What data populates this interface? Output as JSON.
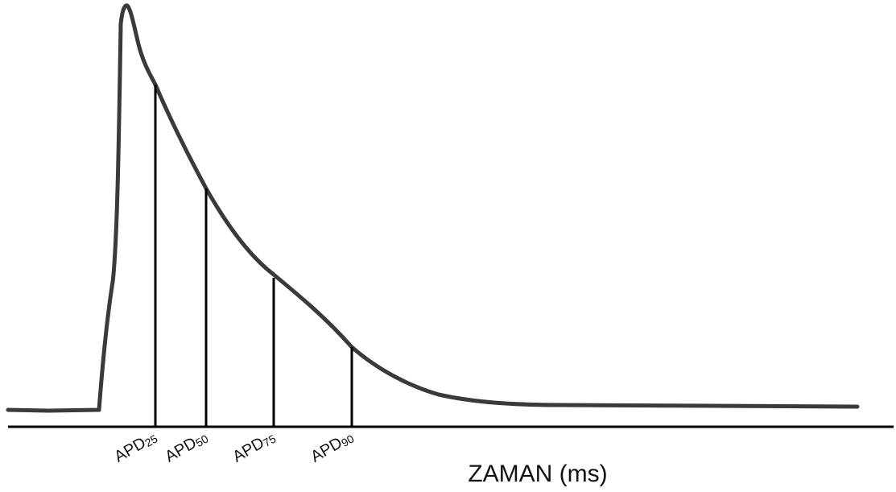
{
  "chart_data": {
    "type": "line",
    "xlabel": "ZAMAN (ms)",
    "markers": [
      {
        "label": "APD",
        "sub": "25"
      },
      {
        "label": "APD",
        "sub": "50"
      },
      {
        "label": "APD",
        "sub": "75"
      },
      {
        "label": "APD",
        "sub": "90"
      }
    ]
  }
}
